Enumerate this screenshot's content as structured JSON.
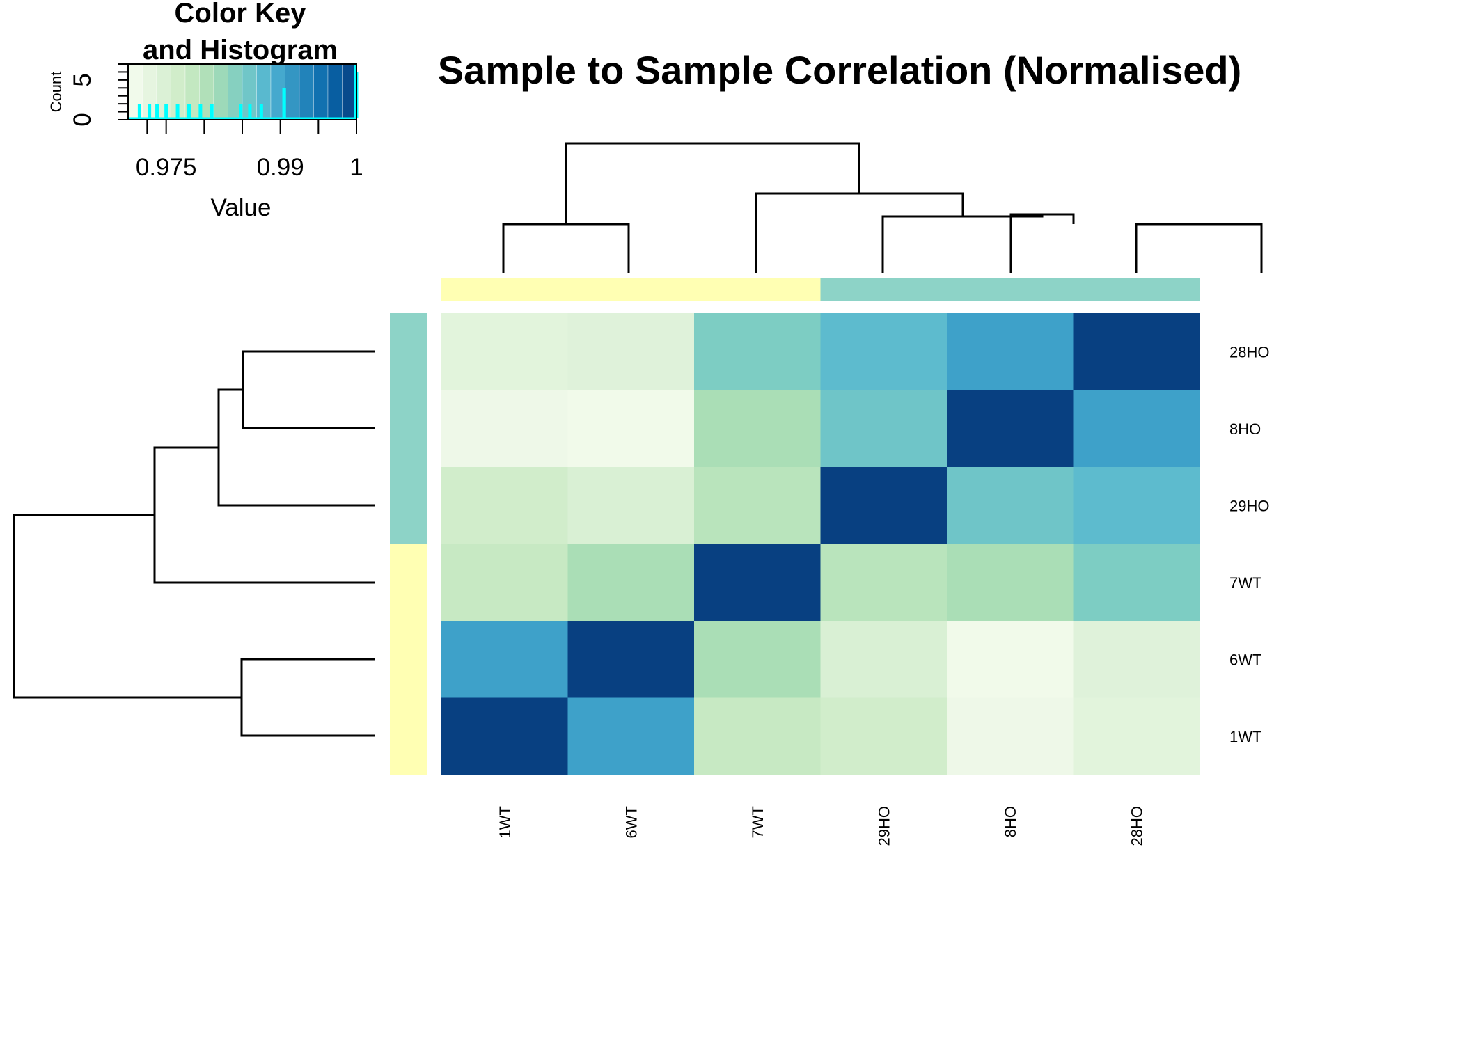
{
  "chart_data": {
    "type": "heatmap",
    "title": "Sample to Sample Correlation (Normalised)",
    "row_labels": [
      "28HO",
      "8HO",
      "29HO",
      "7WT",
      "6WT",
      "1WT"
    ],
    "col_labels": [
      "1WT",
      "6WT",
      "7WT",
      "29HO",
      "8HO",
      "28HO"
    ],
    "values": [
      [
        0.9735,
        0.974,
        0.9848,
        0.9875,
        0.9905,
        1.0
      ],
      [
        0.9715,
        0.971,
        0.981,
        0.986,
        1.0,
        0.9905
      ],
      [
        0.9765,
        0.975,
        0.9795,
        1.0,
        0.986,
        0.9875
      ],
      [
        0.978,
        0.981,
        1.0,
        0.9795,
        0.981,
        0.9848
      ],
      [
        0.9905,
        1.0,
        0.981,
        0.975,
        0.971,
        0.974
      ],
      [
        1.0,
        0.9905,
        0.978,
        0.9765,
        0.9715,
        0.9735
      ]
    ],
    "col_groups": [
      "WT",
      "WT",
      "WT",
      "HO",
      "HO",
      "HO"
    ],
    "row_groups": [
      "HO",
      "HO",
      "HO",
      "WT",
      "WT",
      "WT"
    ],
    "group_colors": {
      "WT": "#FFFFB3",
      "HO": "#8DD3C7"
    },
    "color_scale": {
      "min": 0.97,
      "max": 1.0,
      "stops": [
        "#F7FCF0",
        "#E0F3DB",
        "#CCEBC5",
        "#A8DDB5",
        "#7BCCC4",
        "#4EB3D3",
        "#2B8CBE",
        "#0868AC",
        "#084081"
      ]
    },
    "color_key": {
      "title_line1": "Color Key",
      "title_line2": "and Histogram",
      "xlabel": "Value",
      "ylabel": "Count",
      "x_ticks": [
        {
          "value": 0.975,
          "label": "0.975"
        },
        {
          "value": 0.99,
          "label": "0.99"
        },
        {
          "value": 1.0,
          "label": "1"
        }
      ],
      "x_minor_ticks": [
        0.9725,
        0.975,
        0.98,
        0.985,
        0.99,
        0.995,
        1.0
      ],
      "y_ticks": [
        {
          "value": 0,
          "label": "0"
        },
        {
          "value": 5,
          "label": "5"
        }
      ],
      "y_max": 7,
      "histogram": [
        {
          "x": 0.9715,
          "count": 2
        },
        {
          "x": 0.9728,
          "count": 2
        },
        {
          "x": 0.9738,
          "count": 2
        },
        {
          "x": 0.975,
          "count": 2
        },
        {
          "x": 0.9765,
          "count": 2
        },
        {
          "x": 0.978,
          "count": 2
        },
        {
          "x": 0.981,
          "count": 2
        },
        {
          "x": 0.9795,
          "count": 2
        },
        {
          "x": 0.9848,
          "count": 2
        },
        {
          "x": 0.986,
          "count": 2
        },
        {
          "x": 0.9875,
          "count": 2
        },
        {
          "x": 0.9905,
          "count": 4
        },
        {
          "x": 0.9905,
          "count": 4
        },
        {
          "x": 1.0,
          "count": 6
        }
      ],
      "hist_color": "#00FFFF"
    }
  }
}
